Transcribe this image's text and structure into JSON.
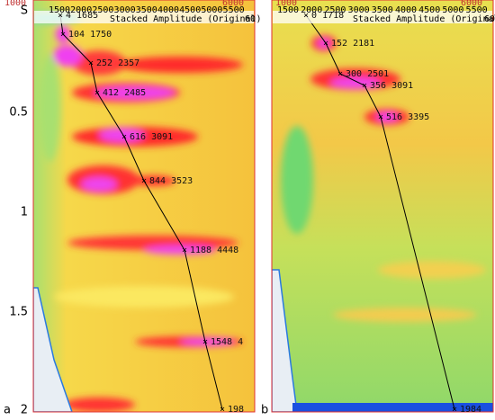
{
  "panels": [
    {
      "label": "a",
      "x_axis": {
        "min_label": "1000",
        "max_label": "6000",
        "ticks": [
          "1500",
          "2000",
          "2500",
          "3000",
          "3500",
          "4000",
          "4500",
          "5000",
          "5500"
        ],
        "title": "Stacked Amplitude (Original)",
        "edge": "60"
      },
      "y_axis": [
        "S",
        "0.5",
        "1",
        "1.5",
        "2"
      ],
      "picks": [
        "4 1685",
        "104 1750",
        "252 2357",
        "412 2485",
        "616 3091",
        "844 3523",
        "1188 4448",
        "1548 4",
        "198"
      ]
    },
    {
      "label": "b",
      "x_axis": {
        "min_label": "1000",
        "max_label": "6000",
        "ticks": [
          "1500",
          "2000",
          "2500",
          "3000",
          "3500",
          "4000",
          "4500",
          "5000",
          "5500"
        ],
        "title": "Stacked Amplitude (Original)",
        "edge": "60"
      },
      "picks": [
        "0 1718",
        "152 2181",
        "300 2501",
        "356 3091",
        "516 3395",
        "1984"
      ]
    }
  ]
}
